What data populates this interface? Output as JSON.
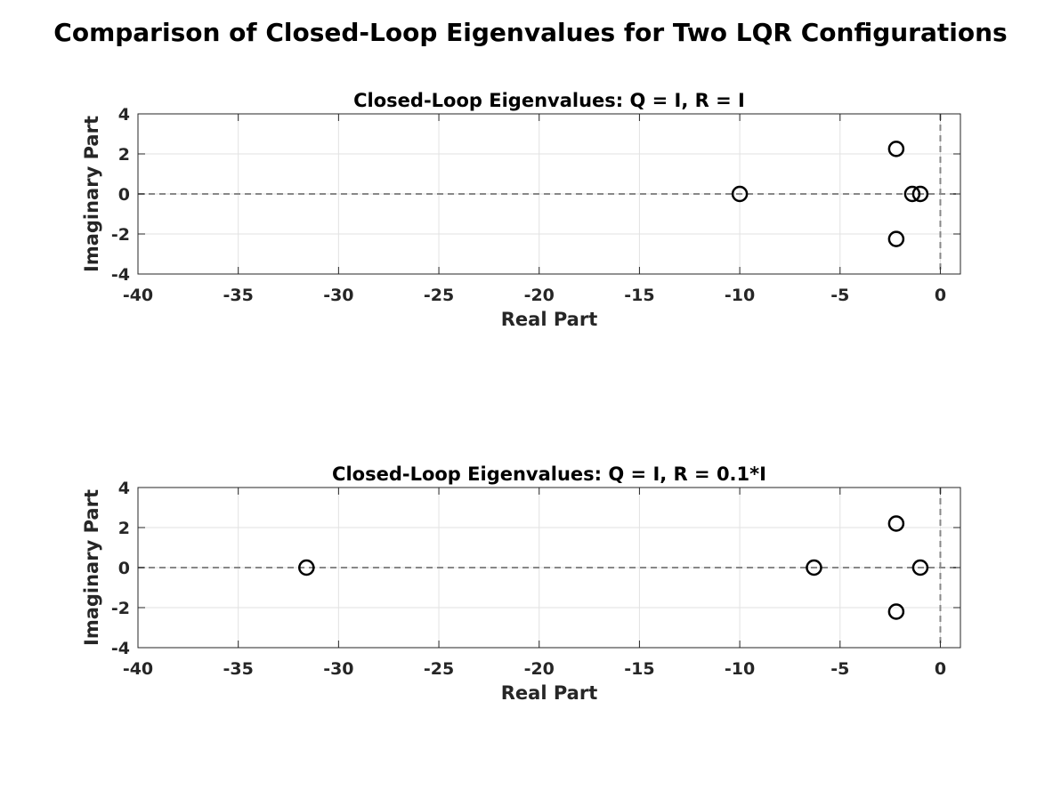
{
  "title": "Comparison of Closed-Loop Eigenvalues for Two LQR Configurations",
  "chart_data": [
    {
      "type": "scatter",
      "title": "Closed-Loop Eigenvalues: Q = I, R = I",
      "xlabel": "Real Part",
      "ylabel": "Imaginary Part",
      "xlim": [
        -40,
        1
      ],
      "ylim": [
        -4,
        4
      ],
      "xticks": [
        -40,
        -35,
        -30,
        -25,
        -20,
        -15,
        -10,
        -5,
        0
      ],
      "yticks": [
        -4,
        -2,
        0,
        2,
        4
      ],
      "grid": true,
      "marker": "open-circle",
      "marker_color": "#000000",
      "reference_lines": {
        "x": 0,
        "y": 0,
        "style": "dashed",
        "color": "#888888"
      },
      "points": [
        {
          "x": -10.0,
          "y": 0.0
        },
        {
          "x": -2.2,
          "y": 2.25
        },
        {
          "x": -2.2,
          "y": -2.25
        },
        {
          "x": -1.4,
          "y": 0.0
        },
        {
          "x": -1.0,
          "y": 0.0
        }
      ]
    },
    {
      "type": "scatter",
      "title": "Closed-Loop Eigenvalues: Q = I, R = 0.1*I",
      "xlabel": "Real Part",
      "ylabel": "Imaginary Part",
      "xlim": [
        -40,
        1
      ],
      "ylim": [
        -4,
        4
      ],
      "xticks": [
        -40,
        -35,
        -30,
        -25,
        -20,
        -15,
        -10,
        -5,
        0
      ],
      "yticks": [
        -4,
        -2,
        0,
        2,
        4
      ],
      "grid": true,
      "marker": "open-circle",
      "marker_color": "#000000",
      "reference_lines": {
        "x": 0,
        "y": 0,
        "style": "dashed",
        "color": "#888888"
      },
      "points": [
        {
          "x": -31.6,
          "y": 0.0
        },
        {
          "x": -6.3,
          "y": 0.0
        },
        {
          "x": -2.2,
          "y": 2.2
        },
        {
          "x": -2.2,
          "y": -2.2
        },
        {
          "x": -1.0,
          "y": 0.0
        }
      ]
    }
  ]
}
